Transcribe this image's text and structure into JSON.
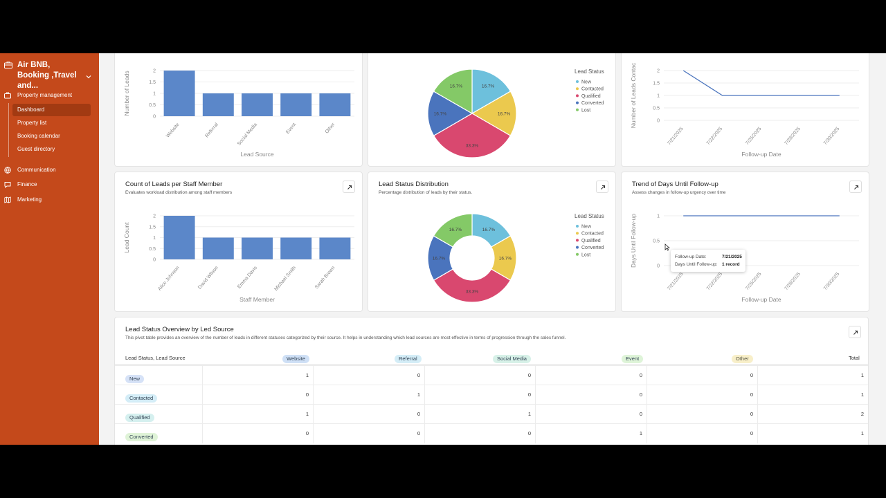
{
  "workspace": {
    "title": "Air BNB, Booking ,Travel and..."
  },
  "nav": {
    "property_management": "Property management",
    "sub_items": [
      "Dashboard",
      "Property list",
      "Booking calendar",
      "Guest directory"
    ],
    "communication": "Communication",
    "finance": "Finance",
    "marketing": "Marketing"
  },
  "colors": {
    "sidebar": "#c4491b",
    "bar": "#5b87c9",
    "new": "#6dc0dc",
    "contacted": "#ebc94e",
    "qualified": "#d9486f",
    "converted": "#4a74bd",
    "lost": "#84c967"
  },
  "pie_legend": {
    "title": "Lead Status",
    "items": [
      "New",
      "Contacted",
      "Qualified",
      "Converted",
      "Lost"
    ]
  },
  "top_left": {
    "ylabel": "Number of Leads",
    "xlabel": "Lead Source"
  },
  "top_right": {
    "ylabel": "Number of Leads Contac",
    "xlabel": "Follow-up Date"
  },
  "staff_card": {
    "title": "Count of Leads per Staff Member",
    "subtitle": "Evaluates workload distribution among staff members",
    "ylabel": "Lead Count",
    "xlabel": "Staff Member"
  },
  "status_card": {
    "title": "Lead Status Distribution",
    "subtitle": "Percentage distribution of leads by their status."
  },
  "trend_card": {
    "title": "Trend of Days Until Follow-up",
    "subtitle": "Assess changes in follow-up urgency over time",
    "ylabel": "Days Until Follow-up",
    "xlabel": "Follow-up Date"
  },
  "tooltip": {
    "date_label": "Follow-up Date:",
    "date_value": "7/21/2025",
    "days_label": "Days Until Follow-up:",
    "days_value": "1 record"
  },
  "chart_data": [
    {
      "type": "bar",
      "categories": [
        "Website",
        "Referral",
        "Social Media",
        "Event",
        "Other"
      ],
      "values": [
        2,
        1,
        1,
        1,
        1
      ],
      "xlabel": "Lead Source",
      "ylabel": "Number of Leads",
      "ylim": [
        0,
        2
      ]
    },
    {
      "type": "pie",
      "categories": [
        "New",
        "Contacted",
        "Qualified",
        "Converted",
        "Lost"
      ],
      "values": [
        16.7,
        16.7,
        33.3,
        16.7,
        16.7
      ]
    },
    {
      "type": "line",
      "x": [
        "7/21/2025",
        "7/22/2025",
        "7/25/2025",
        "7/28/2025",
        "7/30/2025"
      ],
      "values": [
        2,
        1,
        1,
        1,
        1
      ],
      "xlabel": "Follow-up Date",
      "ylabel": "Number of Leads Contac",
      "ylim": [
        0,
        2
      ]
    },
    {
      "type": "bar",
      "categories": [
        "Alice Johnson",
        "David Wilson",
        "Emma Davis",
        "Michael Smith",
        "Sarah Brown"
      ],
      "values": [
        2,
        1,
        1,
        1,
        1
      ],
      "xlabel": "Staff Member",
      "ylabel": "Lead Count",
      "ylim": [
        0,
        2
      ]
    },
    {
      "type": "pie",
      "title": "Lead Status Distribution",
      "categories": [
        "New",
        "Contacted",
        "Qualified",
        "Converted",
        "Lost"
      ],
      "values": [
        16.7,
        16.7,
        33.3,
        16.7,
        16.7
      ]
    },
    {
      "type": "line",
      "title": "Trend of Days Until Follow-up",
      "x": [
        "7/21/2025",
        "7/22/2025",
        "7/25/2025",
        "7/28/2025",
        "7/30/2025"
      ],
      "values": [
        1,
        1,
        1,
        1,
        1
      ],
      "xlabel": "Follow-up Date",
      "ylabel": "Days Until Follow-up",
      "ylim": [
        0,
        1
      ]
    }
  ],
  "y_ticks_2": [
    "2",
    "1.5",
    "1",
    "0.5",
    "0"
  ],
  "y_ticks_1": [
    "1",
    "0.5",
    "0"
  ],
  "pivot": {
    "title": "Lead Status Overview by Led Source",
    "subtitle": "This pivot table provides an overview of the number of leads in different statuses categorized by their source. It helps in understanding which lead sources are most effective in terms of progression through the sales funnel.",
    "corner": "Lead Status, Lead Source",
    "columns": [
      "Website",
      "Referral",
      "Social Media",
      "Event",
      "Other"
    ],
    "total_label": "Total",
    "rows": [
      {
        "status": "New",
        "values": [
          "1",
          "0",
          "0",
          "0",
          "0"
        ],
        "total": "1"
      },
      {
        "status": "Contacted",
        "values": [
          "0",
          "1",
          "0",
          "0",
          "0"
        ],
        "total": "1"
      },
      {
        "status": "Qualified",
        "values": [
          "1",
          "0",
          "1",
          "0",
          "0"
        ],
        "total": "2"
      },
      {
        "status": "Converted",
        "values": [
          "0",
          "0",
          "0",
          "1",
          "0"
        ],
        "total": "1"
      }
    ]
  }
}
